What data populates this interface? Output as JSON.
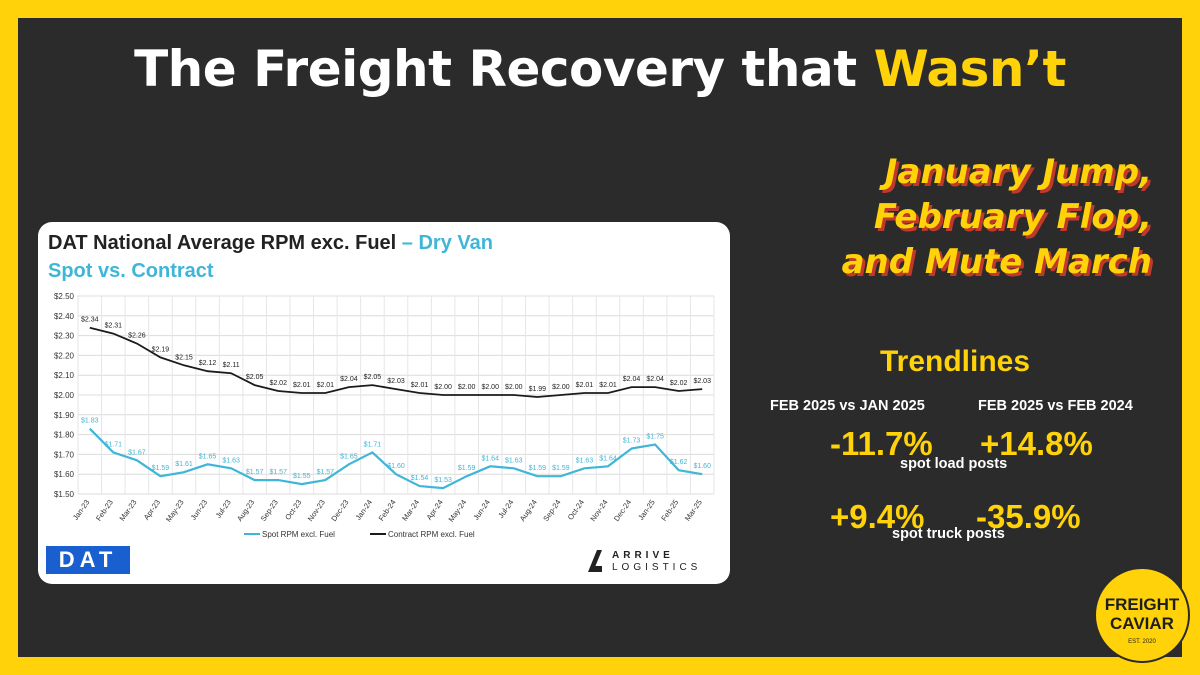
{
  "header": {
    "title_part1": "The Freight Recovery that ",
    "title_highlight": "Wasn’t",
    "subtitle_line1": "January Jump,",
    "subtitle_line2": "February Flop,",
    "subtitle_line3": "and Mute March"
  },
  "card": {
    "title_main": "DAT National Average RPM exc. Fuel",
    "title_accent": " – Dry Van",
    "subtitle": "Spot vs. Contract",
    "dat_logo": "DAT",
    "arrive_line1": "ARRIVE",
    "arrive_line2": "LOGISTICS"
  },
  "chart_data": {
    "type": "line",
    "categories": [
      "Jan-23",
      "Feb-23",
      "Mar-23",
      "Apr-23",
      "May-23",
      "Jun-23",
      "Jul-23",
      "Aug-23",
      "Sep-23",
      "Oct-23",
      "Nov-23",
      "Dec-23",
      "Jan-24",
      "Feb-24",
      "Mar-24",
      "Apr-24",
      "May-24",
      "Jun-24",
      "Jul-24",
      "Aug-24",
      "Sep-24",
      "Oct-24",
      "Nov-24",
      "Dec-24",
      "Jan-25",
      "Feb-25",
      "Mar-25"
    ],
    "series": [
      {
        "name": "Spot RPM excl. Fuel",
        "color": "#3FB6D8",
        "values": [
          1.83,
          1.71,
          1.67,
          1.59,
          1.61,
          1.65,
          1.63,
          1.57,
          1.57,
          1.55,
          1.57,
          1.65,
          1.71,
          1.6,
          1.54,
          1.53,
          1.59,
          1.64,
          1.63,
          1.59,
          1.59,
          1.63,
          1.64,
          1.73,
          1.75,
          1.62,
          1.6
        ],
        "labels": [
          "$1.83",
          "$1.71",
          "$1.67",
          "$1.59",
          "$1.61",
          "$1.65",
          "$1.63",
          "$1.57",
          "$1.57",
          "$1.55",
          "$1.57",
          "$1.65",
          "$1.71",
          "$1.60",
          "$1.54",
          "$1.53",
          "$1.59",
          "$1.64",
          "$1.63",
          "$1.59",
          "$1.59",
          "$1.63",
          "$1.64",
          "$1.73",
          "$1.75",
          "$1.62",
          "$1.60"
        ]
      },
      {
        "name": "Contract RPM excl. Fuel",
        "color": "#1b1b1b",
        "values": [
          2.34,
          2.31,
          2.26,
          2.19,
          2.15,
          2.12,
          2.11,
          2.05,
          2.02,
          2.01,
          2.01,
          2.04,
          2.05,
          2.03,
          2.01,
          2.0,
          2.0,
          2.0,
          2.0,
          1.99,
          2.0,
          2.01,
          2.01,
          2.04,
          2.04,
          2.02,
          2.03
        ],
        "labels": [
          "$2.34",
          "$2.31",
          "$2.26",
          "$2.19",
          "$2.15",
          "$2.12",
          "$2.11",
          "$2.05",
          "$2.02",
          "$2.01",
          "$2.01",
          "$2.04",
          "$2.05",
          "$2.03",
          "$2.01",
          "$2.00",
          "$2.00",
          "$2.00",
          "$2.00",
          "$1.99",
          "$2.00",
          "$2.01",
          "$2.01",
          "$2.04",
          "$2.04",
          "$2.02",
          "$2.03"
        ]
      }
    ],
    "ylim": [
      1.5,
      2.5
    ],
    "yticks": [
      "$1.50",
      "$1.60",
      "$1.70",
      "$1.80",
      "$1.90",
      "$2.00",
      "$2.10",
      "$2.20",
      "$2.30",
      "$2.40",
      "$2.50"
    ],
    "ytick_values": [
      1.5,
      1.6,
      1.7,
      1.8,
      1.9,
      2.0,
      2.1,
      2.2,
      2.3,
      2.4,
      2.5
    ],
    "grid": true,
    "legend": "bottom"
  },
  "trendlines": {
    "title": "Trendlines",
    "col1_head": "FEB 2025 vs JAN 2025",
    "col2_head": "FEB 2025 vs FEB 2024",
    "load_posts_mom": "-11.7%",
    "load_posts_yoy": "+14.8%",
    "load_posts_label": "spot load posts",
    "truck_posts_mom": "+9.4%",
    "truck_posts_yoy": "-35.9%",
    "truck_posts_label": "spot truck posts"
  },
  "brand": {
    "line1": "FREIGHT",
    "line2": "CAVIAR",
    "line3": "EST. 2020"
  }
}
